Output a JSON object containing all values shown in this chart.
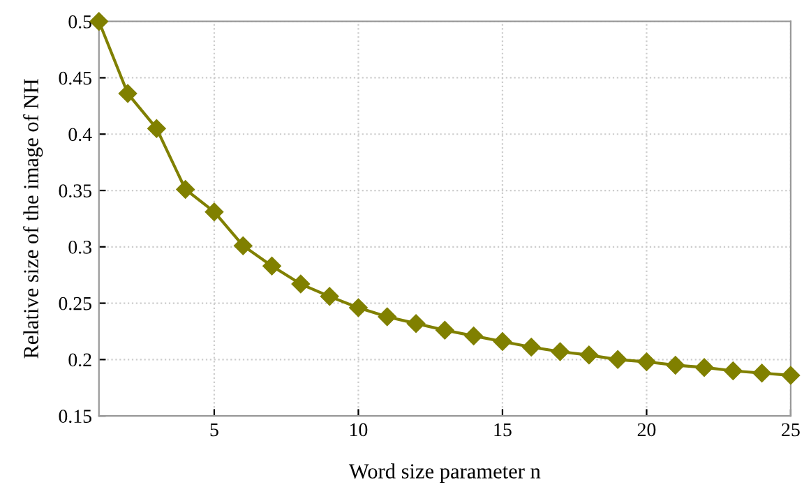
{
  "chart_data": {
    "type": "line",
    "xlabel": "Word size parameter n",
    "ylabel": "Relative size of the image of NH",
    "x": [
      1,
      2,
      3,
      4,
      5,
      6,
      7,
      8,
      9,
      10,
      11,
      12,
      13,
      14,
      15,
      16,
      17,
      18,
      19,
      20,
      21,
      22,
      23,
      24,
      25
    ],
    "series": [
      {
        "color": "#808000",
        "values": [
          0.5,
          0.436,
          0.405,
          0.351,
          0.331,
          0.301,
          0.283,
          0.267,
          0.256,
          0.246,
          0.238,
          0.232,
          0.226,
          0.221,
          0.216,
          0.211,
          0.207,
          0.204,
          0.2,
          0.198,
          0.195,
          0.193,
          0.19,
          0.188,
          0.186
        ]
      }
    ],
    "xlim": [
      1,
      25
    ],
    "xticks": [
      5,
      10,
      15,
      20,
      25
    ],
    "ylim": [
      0.15,
      0.5
    ],
    "yticks": [
      0.15,
      0.2,
      0.25,
      0.3,
      0.35,
      0.4,
      0.45,
      0.5
    ],
    "grid": true,
    "marker": "diamond",
    "line_style": "solid"
  }
}
